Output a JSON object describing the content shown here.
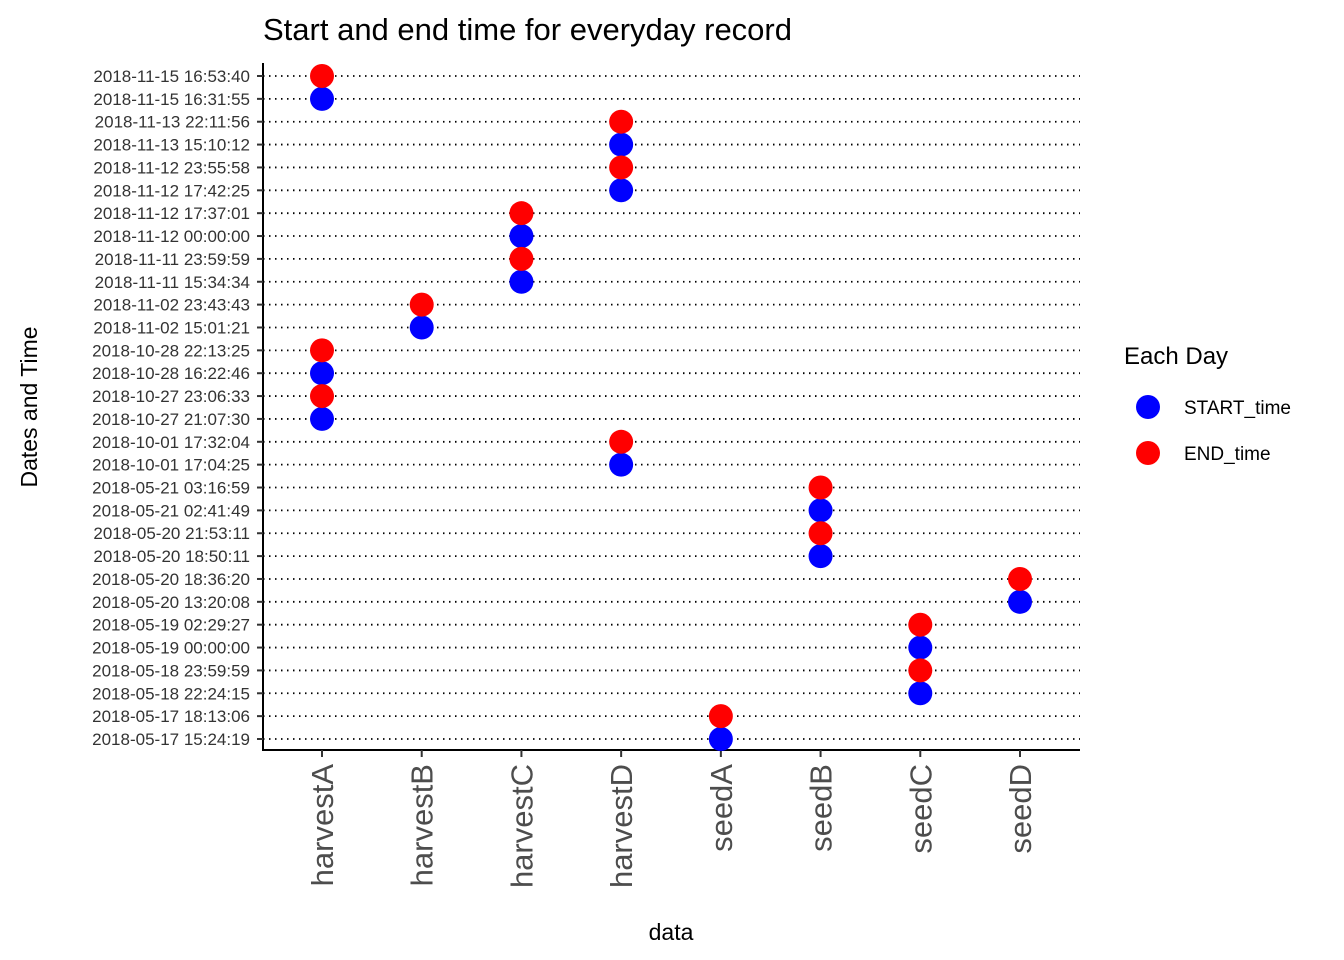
{
  "chart_data": {
    "type": "scatter",
    "title": "Start and end time for everyday record",
    "xlabel": "data",
    "ylabel": "Dates and Time",
    "categories": [
      "harvestA",
      "harvestB",
      "harvestC",
      "harvestD",
      "seedA",
      "seedB",
      "seedC",
      "seedD"
    ],
    "y_categories": [
      "2018-05-17 15:24:19",
      "2018-05-17 18:13:06",
      "2018-05-18 22:24:15",
      "2018-05-18 23:59:59",
      "2018-05-19 00:00:00",
      "2018-05-19 02:29:27",
      "2018-05-20 13:20:08",
      "2018-05-20 18:36:20",
      "2018-05-20 18:50:11",
      "2018-05-20 21:53:11",
      "2018-05-21 02:41:49",
      "2018-05-21 03:16:59",
      "2018-10-01 17:04:25",
      "2018-10-01 17:32:04",
      "2018-10-27 21:07:30",
      "2018-10-27 23:06:33",
      "2018-10-28 16:22:46",
      "2018-10-28 22:13:25",
      "2018-11-02 15:01:21",
      "2018-11-02 23:43:43",
      "2018-11-11 15:34:34",
      "2018-11-11 23:59:59",
      "2018-11-12 00:00:00",
      "2018-11-12 17:37:01",
      "2018-11-12 17:42:25",
      "2018-11-12 23:55:58",
      "2018-11-13 15:10:12",
      "2018-11-13 22:11:56",
      "2018-11-15 16:31:55",
      "2018-11-15 16:53:40"
    ],
    "series": [
      {
        "name": "START_time",
        "color": "#0000ff",
        "points": [
          {
            "x": "harvestA",
            "y": "2018-10-27 21:07:30"
          },
          {
            "x": "harvestA",
            "y": "2018-10-28 16:22:46"
          },
          {
            "x": "harvestA",
            "y": "2018-11-15 16:31:55"
          },
          {
            "x": "harvestB",
            "y": "2018-11-02 15:01:21"
          },
          {
            "x": "harvestC",
            "y": "2018-11-11 15:34:34"
          },
          {
            "x": "harvestC",
            "y": "2018-11-12 00:00:00"
          },
          {
            "x": "harvestD",
            "y": "2018-10-01 17:04:25"
          },
          {
            "x": "harvestD",
            "y": "2018-11-12 17:42:25"
          },
          {
            "x": "harvestD",
            "y": "2018-11-13 15:10:12"
          },
          {
            "x": "seedA",
            "y": "2018-05-17 15:24:19"
          },
          {
            "x": "seedB",
            "y": "2018-05-20 18:50:11"
          },
          {
            "x": "seedB",
            "y": "2018-05-21 02:41:49"
          },
          {
            "x": "seedC",
            "y": "2018-05-18 22:24:15"
          },
          {
            "x": "seedC",
            "y": "2018-05-19 00:00:00"
          },
          {
            "x": "seedD",
            "y": "2018-05-20 13:20:08"
          }
        ]
      },
      {
        "name": "END_time",
        "color": "#ff0000",
        "points": [
          {
            "x": "harvestA",
            "y": "2018-10-27 23:06:33"
          },
          {
            "x": "harvestA",
            "y": "2018-10-28 22:13:25"
          },
          {
            "x": "harvestA",
            "y": "2018-11-15 16:53:40"
          },
          {
            "x": "harvestB",
            "y": "2018-11-02 23:43:43"
          },
          {
            "x": "harvestC",
            "y": "2018-11-11 23:59:59"
          },
          {
            "x": "harvestC",
            "y": "2018-11-12 17:37:01"
          },
          {
            "x": "harvestD",
            "y": "2018-10-01 17:32:04"
          },
          {
            "x": "harvestD",
            "y": "2018-11-12 23:55:58"
          },
          {
            "x": "harvestD",
            "y": "2018-11-13 22:11:56"
          },
          {
            "x": "seedA",
            "y": "2018-05-17 18:13:06"
          },
          {
            "x": "seedB",
            "y": "2018-05-20 21:53:11"
          },
          {
            "x": "seedB",
            "y": "2018-05-21 03:16:59"
          },
          {
            "x": "seedC",
            "y": "2018-05-18 23:59:59"
          },
          {
            "x": "seedC",
            "y": "2018-05-19 02:29:27"
          },
          {
            "x": "seedD",
            "y": "2018-05-20 18:36:20"
          }
        ]
      }
    ],
    "legend": {
      "title": "Each Day",
      "position": "right",
      "entries": [
        "START_time",
        "END_time"
      ]
    },
    "grid": "horizontal-dotted"
  }
}
